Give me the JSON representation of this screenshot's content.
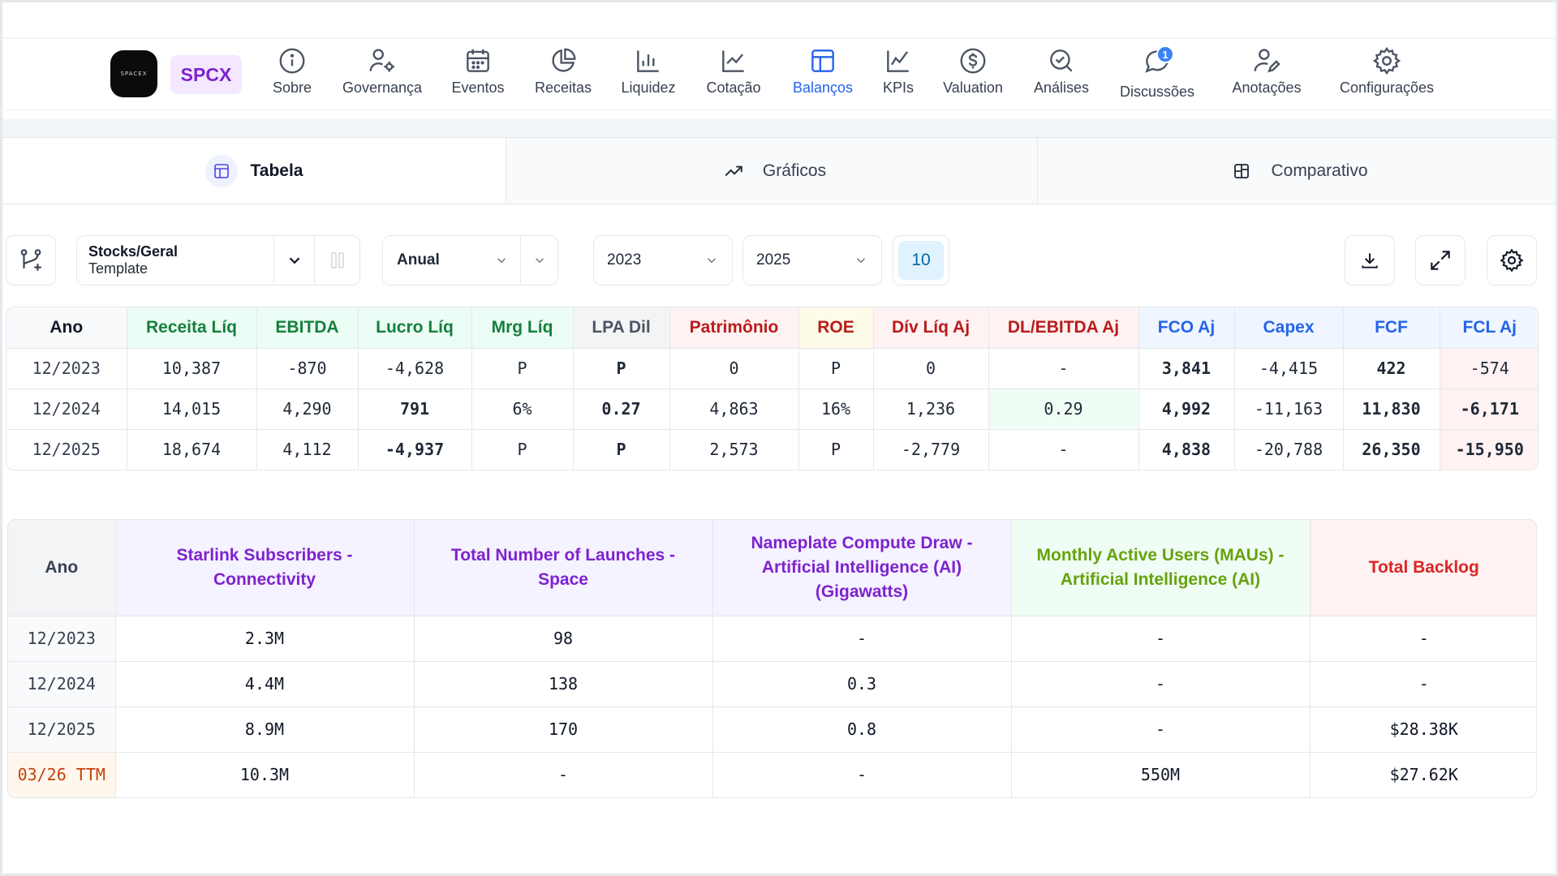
{
  "logo": {
    "text": "SPACEX"
  },
  "ticker": "SPCX",
  "nav": {
    "items": [
      {
        "label": "Sobre",
        "icon": "info-icon"
      },
      {
        "label": "Governança",
        "icon": "user-gear-icon"
      },
      {
        "label": "Eventos",
        "icon": "calendar-icon"
      },
      {
        "label": "Receitas",
        "icon": "pie-chart-icon"
      },
      {
        "label": "Liquidez",
        "icon": "bar-chart-icon"
      },
      {
        "label": "Cotação",
        "icon": "line-chart-icon"
      },
      {
        "label": "Balanços",
        "icon": "layout-table-icon",
        "active": true
      },
      {
        "label": "KPIs",
        "icon": "trend-chart-icon"
      },
      {
        "label": "Valuation",
        "icon": "dollar-icon"
      },
      {
        "label": "Análises",
        "icon": "search-check-icon"
      },
      {
        "label": "Discussões",
        "icon": "chat-icon",
        "badge": "1"
      },
      {
        "label": "Anotações",
        "icon": "user-pen-icon"
      },
      {
        "label": "Configurações",
        "icon": "gear-icon"
      }
    ]
  },
  "tabs": [
    {
      "label": "Tabela",
      "icon": "table-icon",
      "active": true
    },
    {
      "label": "Gráficos",
      "icon": "trending-up-icon"
    },
    {
      "label": "Comparativo",
      "icon": "compare-icon"
    }
  ],
  "controls": {
    "template_title": "Stocks/Geral",
    "template_sub": "Template",
    "period": "Anual",
    "year_from": "2023",
    "year_to": "2025",
    "count": "10"
  },
  "colors": {
    "accent": "#2563eb",
    "ticker": "#7e22ce",
    "negative": "#dc2626",
    "positive": "#15803d"
  },
  "table1": {
    "headers": [
      "Ano",
      "Receita Líq",
      "EBITDA",
      "Lucro Líq",
      "Mrg Líq",
      "LPA Dil",
      "Patrimônio",
      "ROE",
      "Dív Líq Aj",
      "DL/EBITDA Aj",
      "FCO Aj",
      "Capex",
      "FCF",
      "FCL Aj"
    ],
    "rows": [
      [
        "12/2023",
        "10,387",
        "-870",
        "-4,628",
        "P",
        "P",
        "0",
        "P",
        "0",
        "-",
        "3,841",
        "-4,415",
        "422",
        "-574"
      ],
      [
        "12/2024",
        "14,015",
        "4,290",
        "791",
        "6%",
        "0.27",
        "4,863",
        "16%",
        "1,236",
        "0.29",
        "4,992",
        "-11,163",
        "11,830",
        "-6,171"
      ],
      [
        "12/2025",
        "18,674",
        "4,112",
        "-4,937",
        "P",
        "P",
        "2,573",
        "P",
        "-2,779",
        "-",
        "4,838",
        "-20,788",
        "26,350",
        "-15,950"
      ]
    ]
  },
  "table2": {
    "headers": [
      "Ano",
      "Starlink Subscribers - Connectivity",
      "Total Number of Launches - Space",
      "Nameplate Compute Draw - Artificial Intelligence (AI) (Gigawatts)",
      "Monthly Active Users (MAUs) - Artificial Intelligence (AI)",
      "Total Backlog"
    ],
    "rows": [
      [
        "12/2023",
        "2.3M",
        "98",
        "-",
        "-",
        "-"
      ],
      [
        "12/2024",
        "4.4M",
        "138",
        "0.3",
        "-",
        "-"
      ],
      [
        "12/2025",
        "8.9M",
        "170",
        "0.8",
        "-",
        "$28.38K"
      ],
      [
        "03/26 TTM",
        "10.3M",
        "-",
        "-",
        "550M",
        "$27.62K"
      ]
    ]
  }
}
